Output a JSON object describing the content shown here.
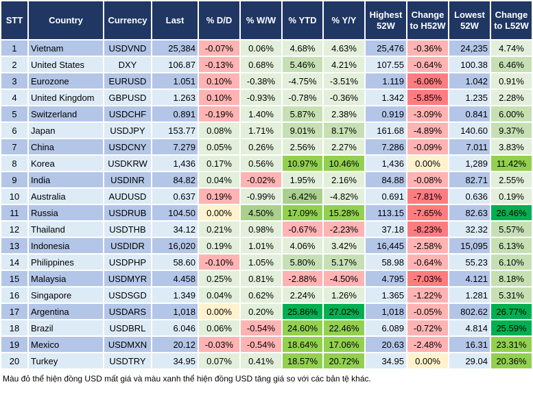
{
  "headers": [
    "STT",
    "Country",
    "Currency",
    "Last",
    "% D/D",
    "% W/W",
    "% YTD",
    "% Y/Y",
    "Highest 52W",
    "Change to H52W",
    "Lowest 52W",
    "Change to L52W"
  ],
  "palette": {
    "L": "#e2efda",
    "M": "#c6e0b4",
    "S": "#a9d08e",
    "B": "#92d050",
    "D": "#00b050",
    "P": "#ffb3b3",
    "R": "#ff7c80",
    "Y": "#fff2cc"
  },
  "rows": [
    {
      "stt": "1",
      "country": "Vietnam",
      "currency": "USDVND",
      "last": "25,384",
      "dd": "-0.07%",
      "ww": "0.06%",
      "ytd": "4.68%",
      "yy": "4.63%",
      "h52": "25,476",
      "ch": "-0.36%",
      "l52": "24,235",
      "cl": "4.74%",
      "colors": "PLLLPL"
    },
    {
      "stt": "2",
      "country": "United States",
      "currency": "DXY",
      "last": "106.87",
      "dd": "-0.13%",
      "ww": "0.68%",
      "ytd": "5.46%",
      "yy": "4.21%",
      "h52": "107.55",
      "ch": "-0.64%",
      "l52": "100.38",
      "cl": "6.46%",
      "colors": "PLMLPM"
    },
    {
      "stt": "3",
      "country": "Eurozone",
      "currency": "EURUSD",
      "last": "1.051",
      "dd": "0.10%",
      "ww": "-0.38%",
      "ytd": "-4.75%",
      "yy": "-3.51%",
      "h52": "1.119",
      "ch": "-6.06%",
      "l52": "1.042",
      "cl": "0.91%",
      "colors": "PLLLRL"
    },
    {
      "stt": "4",
      "country": "United Kingdom",
      "currency": "GBPUSD",
      "last": "1.263",
      "dd": "0.10%",
      "ww": "-0.93%",
      "ytd": "-0.78%",
      "yy": "-0.36%",
      "h52": "1.342",
      "ch": "-5.85%",
      "l52": "1.235",
      "cl": "2.28%",
      "colors": "PLLLRL"
    },
    {
      "stt": "5",
      "country": "Switzerland",
      "currency": "USDCHF",
      "last": "0.891",
      "dd": "-0.19%",
      "ww": "1.40%",
      "ytd": "5.87%",
      "yy": "2.38%",
      "h52": "0.919",
      "ch": "-3.09%",
      "l52": "0.841",
      "cl": "6.00%",
      "colors": "PLMLPM"
    },
    {
      "stt": "6",
      "country": "Japan",
      "currency": "USDJPY",
      "last": "153.77",
      "dd": "0.08%",
      "ww": "1.71%",
      "ytd": "9.01%",
      "yy": "8.17%",
      "h52": "161.68",
      "ch": "-4.89%",
      "l52": "140.60",
      "cl": "9.37%",
      "colors": "LLMMPM"
    },
    {
      "stt": "7",
      "country": "China",
      "currency": "USDCNY",
      "last": "7.279",
      "dd": "0.05%",
      "ww": "0.26%",
      "ytd": "2.56%",
      "yy": "2.27%",
      "h52": "7.286",
      "ch": "-0.09%",
      "l52": "7.011",
      "cl": "3.83%",
      "colors": "LLLLPL"
    },
    {
      "stt": "8",
      "country": "Korea",
      "currency": "USDKRW",
      "last": "1,436",
      "dd": "0.17%",
      "ww": "0.56%",
      "ytd": "10.97%",
      "yy": "10.46%",
      "h52": "1,436",
      "ch": "0.00%",
      "l52": "1,289",
      "cl": "11.42%",
      "colors": "LLBBYB"
    },
    {
      "stt": "9",
      "country": "India",
      "currency": "USDINR",
      "last": "84.82",
      "dd": "0.04%",
      "ww": "-0.02%",
      "ytd": "1.95%",
      "yy": "2.16%",
      "h52": "84.88",
      "ch": "-0.08%",
      "l52": "82.71",
      "cl": "2.55%",
      "colors": "LPLLPL"
    },
    {
      "stt": "10",
      "country": "Australia",
      "currency": "AUDUSD",
      "last": "0.637",
      "dd": "0.19%",
      "ww": "-0.99%",
      "ytd": "-6.42%",
      "yy": "-4.82%",
      "h52": "0.691",
      "ch": "-7.81%",
      "l52": "0.636",
      "cl": "0.19%",
      "colors": "PLSLRL"
    },
    {
      "stt": "11",
      "country": "Russia",
      "currency": "USDRUB",
      "last": "104.50",
      "dd": "0.00%",
      "ww": "4.50%",
      "ytd": "17.09%",
      "yy": "15.28%",
      "h52": "113.15",
      "ch": "-7.65%",
      "l52": "82.63",
      "cl": "26.46%",
      "colors": "YSBBRD"
    },
    {
      "stt": "12",
      "country": "Thailand",
      "currency": "USDTHB",
      "last": "34.12",
      "dd": "0.21%",
      "ww": "0.98%",
      "ytd": "-0.67%",
      "yy": "-2.23%",
      "h52": "37.18",
      "ch": "-8.23%",
      "l52": "32.32",
      "cl": "5.57%",
      "colors": "LLPPRM"
    },
    {
      "stt": "13",
      "country": "Indonesia",
      "currency": "USDIDR",
      "last": "16,020",
      "dd": "0.19%",
      "ww": "1.01%",
      "ytd": "4.06%",
      "yy": "3.42%",
      "h52": "16,445",
      "ch": "-2.58%",
      "l52": "15,095",
      "cl": "6.13%",
      "colors": "LLLLPM"
    },
    {
      "stt": "14",
      "country": "Philippines",
      "currency": "USDPHP",
      "last": "58.60",
      "dd": "-0.10%",
      "ww": "1.05%",
      "ytd": "5.80%",
      "yy": "5.17%",
      "h52": "58.98",
      "ch": "-0.64%",
      "l52": "55.23",
      "cl": "6.10%",
      "colors": "PLMMPM"
    },
    {
      "stt": "15",
      "country": "Malaysia",
      "currency": "USDMYR",
      "last": "4.458",
      "dd": "0.25%",
      "ww": "0.81%",
      "ytd": "-2.88%",
      "yy": "-4.50%",
      "h52": "4.795",
      "ch": "-7.03%",
      "l52": "4.121",
      "cl": "8.18%",
      "colors": "LLPPRM"
    },
    {
      "stt": "16",
      "country": "Singapore",
      "currency": "USDSGD",
      "last": "1.349",
      "dd": "0.04%",
      "ww": "0.62%",
      "ytd": "2.24%",
      "yy": "1.26%",
      "h52": "1.365",
      "ch": "-1.22%",
      "l52": "1.281",
      "cl": "5.31%",
      "colors": "LLLLPM"
    },
    {
      "stt": "17",
      "country": "Argentina",
      "currency": "USDARS",
      "last": "1,018",
      "dd": "0.00%",
      "ww": "0.20%",
      "ytd": "25.86%",
      "yy": "27.02%",
      "h52": "1,018",
      "ch": "-0.05%",
      "l52": "802.62",
      "cl": "26.77%",
      "colors": "YLDDPD"
    },
    {
      "stt": "18",
      "country": "Brazil",
      "currency": "USDBRL",
      "last": "6.046",
      "dd": "0.06%",
      "ww": "-0.54%",
      "ytd": "24.60%",
      "yy": "22.46%",
      "h52": "6.089",
      "ch": "-0.72%",
      "l52": "4.814",
      "cl": "25.59%",
      "colors": "LPBBPD"
    },
    {
      "stt": "19",
      "country": "Mexico",
      "currency": "USDMXN",
      "last": "20.12",
      "dd": "-0.03%",
      "ww": "-0.54%",
      "ytd": "18.64%",
      "yy": "17.06%",
      "h52": "20.63",
      "ch": "-2.48%",
      "l52": "16.31",
      "cl": "23.31%",
      "colors": "PPBBPB"
    },
    {
      "stt": "20",
      "country": "Turkey",
      "currency": "USDTRY",
      "last": "34.95",
      "dd": "0.07%",
      "ww": "0.41%",
      "ytd": "18.57%",
      "yy": "20.72%",
      "h52": "34.95",
      "ch": "0.00%",
      "l52": "29.04",
      "cl": "20.36%",
      "colors": "LLBBYB"
    }
  ],
  "footnote": "Màu đỏ thể hiện đồng USD mất giá và màu xanh thể hiện đồng USD tăng giá so với các bản tệ khác."
}
